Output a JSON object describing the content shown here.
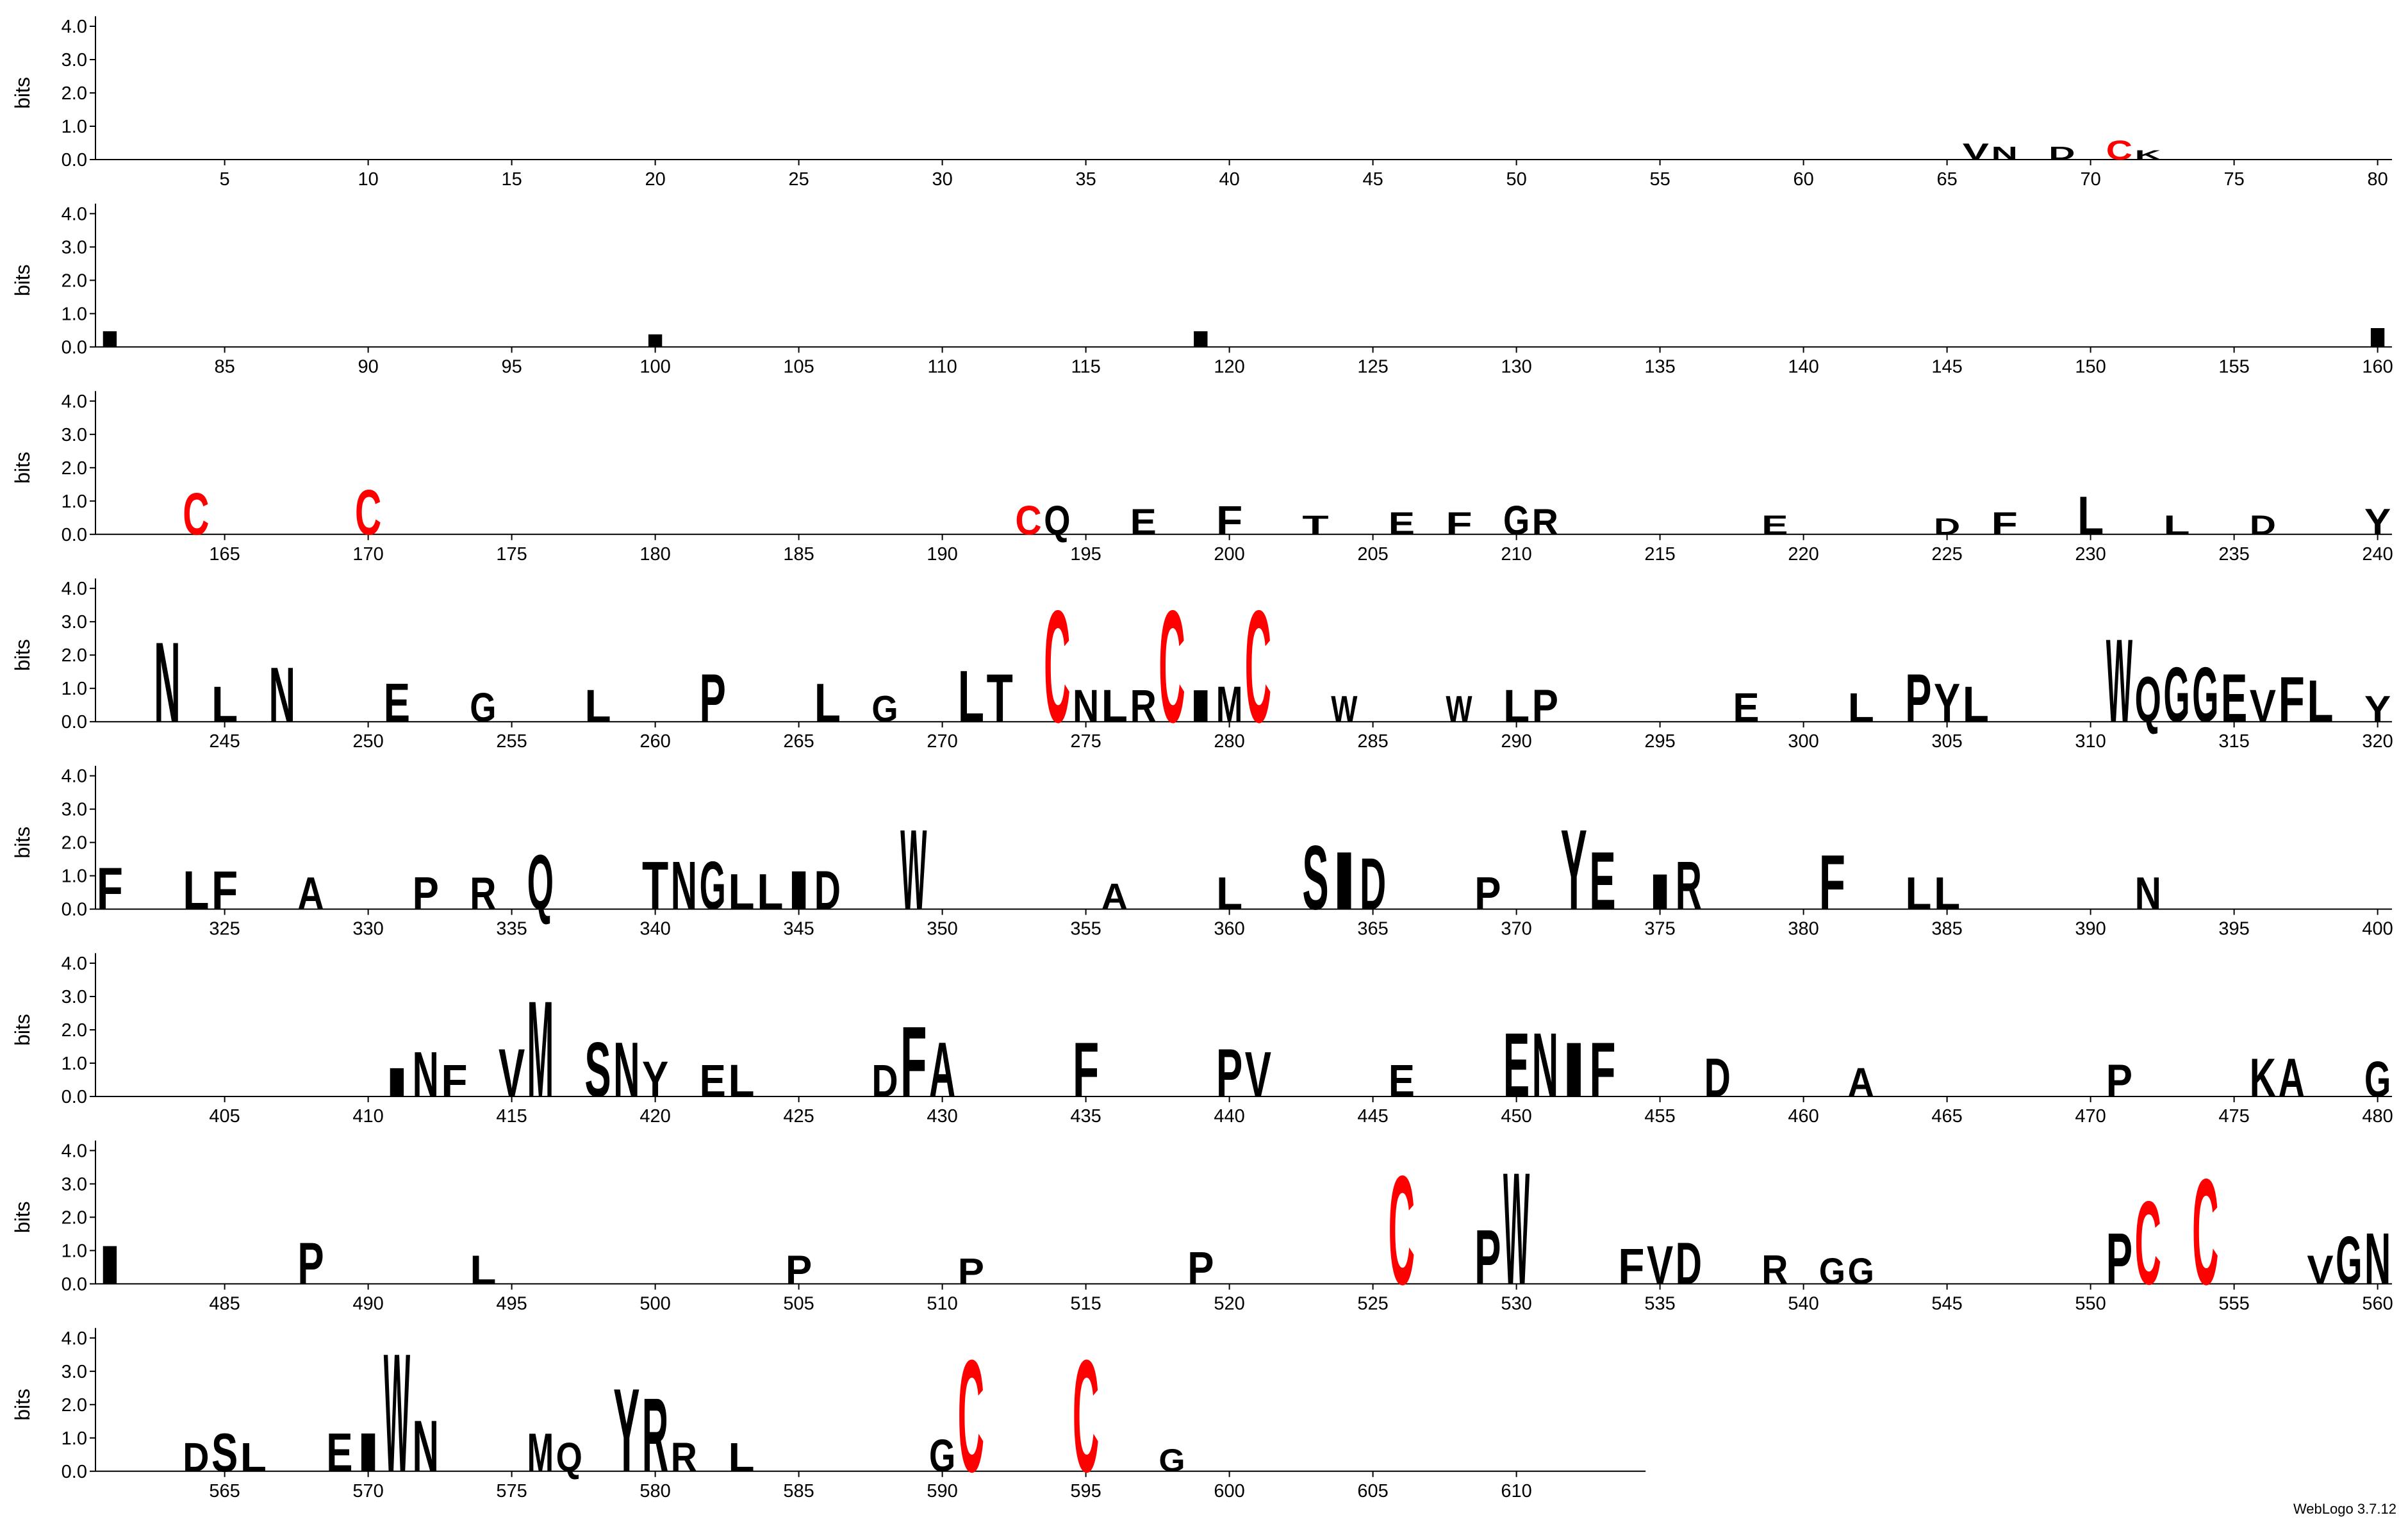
{
  "chart_data": [
    {
      "type": "logo",
      "ylabel": "bits",
      "ylim": [
        0,
        4.3
      ],
      "yticks": [
        {
          "value": 0,
          "label": "0.0"
        },
        {
          "value": 1,
          "label": "1.0"
        },
        {
          "value": 2,
          "label": "2.0"
        },
        {
          "value": 3,
          "label": "3.0"
        },
        {
          "value": 4,
          "label": "4.0"
        }
      ],
      "xlim": [
        0.5,
        80.5
      ],
      "xticks": [
        5,
        10,
        15,
        20,
        25,
        30,
        35,
        40,
        45,
        50,
        55,
        60,
        65,
        70,
        75,
        80
      ],
      "color": "#000000",
      "letter_colors": {
        "C": "#ff0000"
      },
      "x": [
        66,
        67,
        69,
        71,
        72
      ],
      "letters": [
        "V",
        "N",
        "D",
        "C",
        "K"
      ],
      "values": [
        0.5,
        0.4,
        0.4,
        0.6,
        0.3
      ]
    },
    {
      "type": "logo",
      "ylabel": "bits",
      "ylim": [
        0,
        4.3
      ],
      "yticks": [
        {
          "value": 0,
          "label": "0.0"
        },
        {
          "value": 1,
          "label": "1.0"
        },
        {
          "value": 2,
          "label": "2.0"
        },
        {
          "value": 3,
          "label": "3.0"
        },
        {
          "value": 4,
          "label": "4.0"
        }
      ],
      "xlim": [
        80.5,
        160.5
      ],
      "xticks": [
        85,
        90,
        95,
        100,
        105,
        110,
        115,
        120,
        125,
        130,
        135,
        140,
        145,
        150,
        155,
        160
      ],
      "color": "#000000",
      "letter_colors": {
        "C": "#ff0000"
      },
      "x": [
        81,
        100,
        119,
        160
      ],
      "letters": [
        "I",
        "I",
        "I",
        "I"
      ],
      "values": [
        0.5,
        0.4,
        0.5,
        0.6
      ]
    },
    {
      "type": "logo",
      "ylabel": "bits",
      "ylim": [
        0,
        4.3
      ],
      "yticks": [
        {
          "value": 0,
          "label": "0.0"
        },
        {
          "value": 1,
          "label": "1.0"
        },
        {
          "value": 2,
          "label": "2.0"
        },
        {
          "value": 3,
          "label": "3.0"
        },
        {
          "value": 4,
          "label": "4.0"
        }
      ],
      "xlim": [
        160.5,
        240.5
      ],
      "xticks": [
        165,
        170,
        175,
        180,
        185,
        190,
        195,
        200,
        205,
        210,
        215,
        220,
        225,
        230,
        235,
        240
      ],
      "color": "#000000",
      "letter_colors": {
        "C": "#ff0000"
      },
      "x": [
        164,
        170,
        193,
        194,
        197,
        200,
        203,
        206,
        208,
        210,
        211,
        219,
        225,
        227,
        230,
        233,
        236,
        240
      ],
      "letters": [
        "C",
        "C",
        "C",
        "Q",
        "E",
        "F",
        "T",
        "E",
        "F",
        "G",
        "R",
        "E",
        "D",
        "F",
        "L",
        "L",
        "D",
        "Y"
      ],
      "values": [
        1.3,
        1.4,
        0.9,
        0.9,
        0.8,
        0.9,
        0.6,
        0.7,
        0.7,
        0.9,
        0.8,
        0.6,
        0.5,
        0.7,
        1.2,
        0.6,
        0.6,
        0.8
      ]
    },
    {
      "type": "logo",
      "ylabel": "bits",
      "ylim": [
        0,
        4.3
      ],
      "yticks": [
        {
          "value": 0,
          "label": "0.0"
        },
        {
          "value": 1,
          "label": "1.0"
        },
        {
          "value": 2,
          "label": "2.0"
        },
        {
          "value": 3,
          "label": "3.0"
        },
        {
          "value": 4,
          "label": "4.0"
        }
      ],
      "xlim": [
        240.5,
        320.5
      ],
      "xticks": [
        245,
        250,
        255,
        260,
        265,
        270,
        275,
        280,
        285,
        290,
        295,
        300,
        305,
        310,
        315,
        320
      ],
      "color": "#000000",
      "letter_colors": {
        "C": "#ff0000"
      },
      "x": [
        243,
        245,
        247,
        251,
        254,
        258,
        262,
        266,
        268,
        271,
        272,
        274,
        275,
        276,
        277,
        278,
        279,
        280,
        281,
        284,
        288,
        290,
        291,
        298,
        302,
        304,
        305,
        306,
        311,
        312,
        313,
        314,
        315,
        316,
        317,
        318,
        320
      ],
      "letters": [
        "N",
        "L",
        "N",
        "E",
        "G",
        "L",
        "P",
        "L",
        "G",
        "L",
        "T",
        "C",
        "N",
        "L",
        "R",
        "C",
        "I",
        "M",
        "C",
        "W",
        "W",
        "L",
        "P",
        "E",
        "L",
        "P",
        "Y",
        "L",
        "W",
        "Q",
        "G",
        "G",
        "E",
        "V",
        "F",
        "L",
        "Y"
      ],
      "values": [
        2.5,
        1.1,
        1.7,
        1.2,
        0.9,
        1.0,
        1.5,
        1.2,
        0.8,
        1.6,
        1.5,
        3.5,
        1.0,
        1.0,
        1.0,
        3.5,
        1.0,
        1.1,
        3.5,
        0.8,
        0.8,
        1.0,
        1.0,
        0.9,
        0.9,
        1.5,
        1.2,
        1.1,
        2.6,
        1.4,
        1.7,
        1.7,
        1.5,
        1.0,
        1.4,
        1.3,
        0.8
      ]
    },
    {
      "type": "logo",
      "ylabel": "bits",
      "ylim": [
        0,
        4.3
      ],
      "yticks": [
        {
          "value": 0,
          "label": "0.0"
        },
        {
          "value": 1,
          "label": "1.0"
        },
        {
          "value": 2,
          "label": "2.0"
        },
        {
          "value": 3,
          "label": "3.0"
        },
        {
          "value": 4,
          "label": "4.0"
        }
      ],
      "xlim": [
        320.5,
        400.5
      ],
      "xticks": [
        325,
        330,
        335,
        340,
        345,
        350,
        355,
        360,
        365,
        370,
        375,
        380,
        385,
        390,
        395,
        400
      ],
      "color": "#000000",
      "letter_colors": {
        "C": "#ff0000"
      },
      "x": [
        321,
        324,
        325,
        328,
        332,
        334,
        336,
        340,
        341,
        342,
        343,
        344,
        345,
        346,
        349,
        356,
        360,
        363,
        364,
        365,
        369,
        372,
        373,
        375,
        376,
        381,
        384,
        385,
        392
      ],
      "letters": [
        "F",
        "L",
        "F",
        "A",
        "P",
        "R",
        "Q",
        "T",
        "N",
        "G",
        "L",
        "L",
        "I",
        "D",
        "W",
        "A",
        "L",
        "S",
        "I",
        "D",
        "P",
        "Y",
        "E",
        "I",
        "R",
        "F",
        "L",
        "L",
        "N"
      ],
      "values": [
        1.3,
        1.2,
        1.2,
        1.0,
        1.0,
        1.0,
        1.7,
        1.5,
        1.5,
        1.5,
        1.1,
        1.1,
        1.2,
        1.2,
        2.5,
        0.8,
        1.0,
        2.0,
        1.8,
        1.6,
        1.0,
        2.5,
        1.8,
        1.1,
        1.5,
        1.7,
        1.0,
        1.0,
        1.0
      ]
    },
    {
      "type": "logo",
      "ylabel": "bits",
      "ylim": [
        0,
        4.3
      ],
      "yticks": [
        {
          "value": 0,
          "label": "0.0"
        },
        {
          "value": 1,
          "label": "1.0"
        },
        {
          "value": 2,
          "label": "2.0"
        },
        {
          "value": 3,
          "label": "3.0"
        },
        {
          "value": 4,
          "label": "4.0"
        }
      ],
      "xlim": [
        400.5,
        480.5
      ],
      "xticks": [
        405,
        410,
        415,
        420,
        425,
        430,
        435,
        440,
        445,
        450,
        455,
        460,
        465,
        470,
        475,
        480
      ],
      "color": "#000000",
      "letter_colors": {
        "C": "#ff0000"
      },
      "x": [
        411,
        412,
        413,
        415,
        416,
        418,
        419,
        420,
        422,
        423,
        428,
        429,
        430,
        435,
        440,
        441,
        446,
        450,
        451,
        452,
        453,
        457,
        462,
        471,
        476,
        477,
        480
      ],
      "letters": [
        "I",
        "N",
        "F",
        "V",
        "M",
        "S",
        "N",
        "Y",
        "E",
        "L",
        "D",
        "F",
        "A",
        "F",
        "P",
        "V",
        "E",
        "E",
        "N",
        "I",
        "F",
        "D",
        "A",
        "P",
        "K",
        "A",
        "G"
      ],
      "values": [
        0.9,
        1.4,
        1.0,
        1.5,
        3.0,
        1.7,
        1.7,
        1.1,
        1.0,
        1.0,
        1.0,
        2.2,
        1.7,
        1.7,
        1.5,
        1.4,
        1.0,
        2.0,
        2.0,
        1.7,
        1.7,
        1.2,
        0.9,
        1.0,
        1.2,
        1.2,
        1.1
      ]
    },
    {
      "type": "logo",
      "ylabel": "bits",
      "ylim": [
        0,
        4.3
      ],
      "yticks": [
        {
          "value": 0,
          "label": "0.0"
        },
        {
          "value": 1,
          "label": "1.0"
        },
        {
          "value": 2,
          "label": "2.0"
        },
        {
          "value": 3,
          "label": "3.0"
        },
        {
          "value": 4,
          "label": "4.0"
        }
      ],
      "xlim": [
        480.5,
        560.5
      ],
      "xticks": [
        485,
        490,
        495,
        500,
        505,
        510,
        515,
        520,
        525,
        530,
        535,
        540,
        545,
        550,
        555,
        560
      ],
      "color": "#000000",
      "letter_colors": {
        "C": "#ff0000"
      },
      "x": [
        481,
        488,
        494,
        505,
        511,
        519,
        526,
        529,
        530,
        534,
        535,
        536,
        539,
        541,
        542,
        551,
        552,
        554,
        558,
        559,
        560
      ],
      "letters": [
        "I",
        "P",
        "L",
        "P",
        "P",
        "P",
        "C",
        "P",
        "W",
        "F",
        "V",
        "D",
        "R",
        "G",
        "G",
        "P",
        "C",
        "C",
        "V",
        "G",
        "N"
      ],
      "values": [
        1.2,
        1.3,
        0.9,
        0.9,
        0.8,
        1.0,
        3.4,
        1.7,
        3.5,
        1.1,
        1.2,
        1.3,
        0.9,
        0.8,
        0.8,
        1.6,
        2.6,
        3.3,
        0.9,
        1.5,
        1.6
      ]
    },
    {
      "type": "logo",
      "ylabel": "bits",
      "ylim": [
        0,
        4.3
      ],
      "yticks": [
        {
          "value": 0,
          "label": "0.0"
        },
        {
          "value": 1,
          "label": "1.0"
        },
        {
          "value": 2,
          "label": "2.0"
        },
        {
          "value": 3,
          "label": "3.0"
        },
        {
          "value": 4,
          "label": "4.0"
        }
      ],
      "xlim": [
        560.5,
        614.5
      ],
      "xticks": [
        565,
        570,
        575,
        580,
        585,
        590,
        595,
        600,
        605,
        610
      ],
      "color": "#000000",
      "letter_colors": {
        "C": "#ff0000"
      },
      "x": [
        564,
        565,
        566,
        569,
        570,
        571,
        572,
        576,
        577,
        579,
        580,
        581,
        583,
        590,
        591,
        595,
        598
      ],
      "letters": [
        "D",
        "S",
        "L",
        "E",
        "I",
        "W",
        "N",
        "M",
        "Q",
        "Y",
        "R",
        "R",
        "L",
        "G",
        "C",
        "C",
        "G"
      ],
      "values": [
        0.9,
        1.2,
        0.9,
        1.2,
        1.2,
        3.7,
        1.6,
        1.2,
        0.9,
        2.6,
        2.3,
        0.9,
        0.9,
        1.0,
        3.5,
        3.5,
        0.7
      ]
    }
  ],
  "footer": "WebLogo 3.7.12"
}
